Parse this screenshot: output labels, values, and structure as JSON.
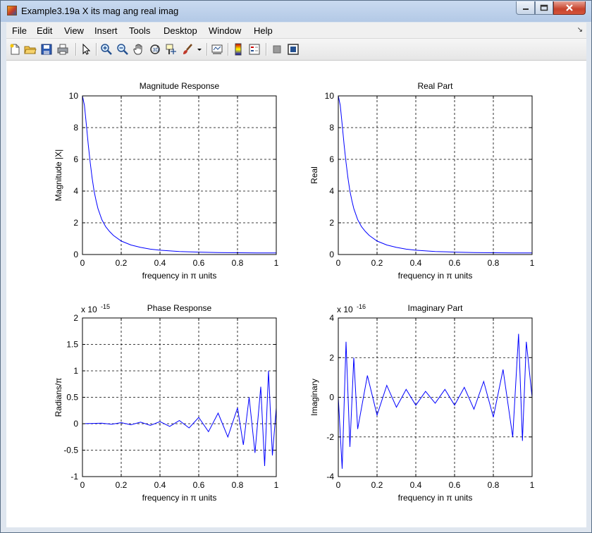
{
  "window": {
    "title": "Example3.19a X its mag ang real imag"
  },
  "menu": {
    "items": [
      "File",
      "Edit",
      "View",
      "Insert",
      "Tools",
      "Desktop",
      "Window",
      "Help"
    ]
  },
  "toolbar": {
    "icons": [
      "new-figure-icon",
      "open-file-icon",
      "save-icon",
      "print-icon",
      "select-arrow-icon",
      "zoom-in-icon",
      "zoom-out-icon",
      "pan-hand-icon",
      "rotate-3d-icon",
      "data-cursor-icon",
      "brush-icon",
      "brush-dropdown-icon",
      "link-plot-icon",
      "colorbar-icon",
      "legend-icon",
      "hide-plot-tools-icon",
      "show-plot-tools-icon"
    ]
  },
  "chart_data": [
    {
      "type": "line",
      "title": "Magnitude Response",
      "xlabel": "frequency in π units",
      "ylabel": "Magnitude  |X|",
      "xlim": [
        0,
        1
      ],
      "ylim": [
        0,
        10
      ],
      "xticks": [
        "0",
        "0.2",
        "0.4",
        "0.6",
        "0.8",
        "1"
      ],
      "yticks": [
        "0",
        "2",
        "4",
        "6",
        "8",
        "10"
      ],
      "yticks_values": [
        0,
        2,
        4,
        6,
        8,
        10
      ],
      "exponent": "",
      "grid": true,
      "series": [
        {
          "color": "#0000ff",
          "x": [
            0,
            0.01,
            0.02,
            0.03,
            0.04,
            0.05,
            0.06,
            0.07,
            0.08,
            0.1,
            0.12,
            0.14,
            0.16,
            0.2,
            0.25,
            0.3,
            0.35,
            0.4,
            0.5,
            0.6,
            0.7,
            0.8,
            0.9,
            1.0
          ],
          "y": [
            10,
            9.4,
            8.2,
            6.9,
            5.8,
            4.8,
            4.0,
            3.4,
            2.9,
            2.2,
            1.75,
            1.45,
            1.2,
            0.85,
            0.6,
            0.45,
            0.34,
            0.27,
            0.19,
            0.15,
            0.12,
            0.11,
            0.1,
            0.1
          ]
        }
      ]
    },
    {
      "type": "line",
      "title": "Real Part",
      "xlabel": "frequency in π units",
      "ylabel": "Real",
      "xlim": [
        0,
        1
      ],
      "ylim": [
        0,
        10
      ],
      "xticks": [
        "0",
        "0.2",
        "0.4",
        "0.6",
        "0.8",
        "1"
      ],
      "yticks": [
        "0",
        "2",
        "4",
        "6",
        "8",
        "10"
      ],
      "yticks_values": [
        0,
        2,
        4,
        6,
        8,
        10
      ],
      "exponent": "",
      "grid": true,
      "series": [
        {
          "color": "#0000ff",
          "x": [
            0,
            0.01,
            0.02,
            0.03,
            0.04,
            0.05,
            0.06,
            0.07,
            0.08,
            0.1,
            0.12,
            0.14,
            0.16,
            0.2,
            0.25,
            0.3,
            0.35,
            0.4,
            0.5,
            0.6,
            0.7,
            0.8,
            0.9,
            1.0
          ],
          "y": [
            10,
            9.4,
            8.2,
            6.9,
            5.8,
            4.8,
            4.0,
            3.4,
            2.9,
            2.2,
            1.75,
            1.45,
            1.2,
            0.85,
            0.6,
            0.45,
            0.34,
            0.27,
            0.19,
            0.15,
            0.12,
            0.11,
            0.1,
            0.1
          ]
        }
      ]
    },
    {
      "type": "line",
      "title": "Phase Response",
      "xlabel": "frequency in π units",
      "ylabel": "Radians/π",
      "xlim": [
        0,
        1
      ],
      "ylim": [
        -1,
        2
      ],
      "xticks": [
        "0",
        "0.2",
        "0.4",
        "0.6",
        "0.8",
        "1"
      ],
      "yticks": [
        "-1",
        "-0.5",
        "0",
        "0.5",
        "1",
        "1.5",
        "2"
      ],
      "yticks_values": [
        -1,
        -0.5,
        0,
        0.5,
        1,
        1.5,
        2
      ],
      "exponent": "x 10",
      "exponent_power": "-15",
      "grid": true,
      "series": [
        {
          "color": "#0000ff",
          "x": [
            0,
            0.05,
            0.1,
            0.15,
            0.2,
            0.25,
            0.3,
            0.35,
            0.4,
            0.45,
            0.5,
            0.55,
            0.6,
            0.65,
            0.7,
            0.75,
            0.8,
            0.83,
            0.86,
            0.89,
            0.92,
            0.94,
            0.96,
            0.98,
            1.0
          ],
          "y": [
            0,
            0.005,
            0.01,
            -0.01,
            0.02,
            -0.02,
            0.03,
            -0.03,
            0.04,
            -0.05,
            0.06,
            -0.08,
            0.12,
            -0.15,
            0.2,
            -0.25,
            0.3,
            -0.4,
            0.5,
            -0.55,
            0.7,
            -0.8,
            1.0,
            -0.6,
            0.3
          ]
        }
      ]
    },
    {
      "type": "line",
      "title": "Imaginary Part",
      "xlabel": "frequency in π units",
      "ylabel": "Imaginary",
      "xlim": [
        0,
        1
      ],
      "ylim": [
        -4,
        4
      ],
      "xticks": [
        "0",
        "0.2",
        "0.4",
        "0.6",
        "0.8",
        "1"
      ],
      "yticks": [
        "-4",
        "-2",
        "0",
        "2",
        "4"
      ],
      "yticks_values": [
        -4,
        -2,
        0,
        2,
        4
      ],
      "exponent": "x 10",
      "exponent_power": "-16",
      "grid": true,
      "series": [
        {
          "color": "#0000ff",
          "x": [
            0,
            0.02,
            0.04,
            0.06,
            0.08,
            0.1,
            0.15,
            0.2,
            0.25,
            0.3,
            0.35,
            0.4,
            0.45,
            0.5,
            0.55,
            0.6,
            0.65,
            0.7,
            0.75,
            0.8,
            0.85,
            0.9,
            0.93,
            0.95,
            0.97,
            1.0
          ],
          "y": [
            0,
            -3.6,
            2.8,
            -2.5,
            2.0,
            -1.6,
            1.1,
            -0.9,
            0.6,
            -0.5,
            0.4,
            -0.4,
            0.3,
            -0.3,
            0.4,
            -0.4,
            0.5,
            -0.6,
            0.8,
            -1.0,
            1.4,
            -2.0,
            3.2,
            -2.2,
            2.8,
            0
          ]
        }
      ]
    }
  ]
}
